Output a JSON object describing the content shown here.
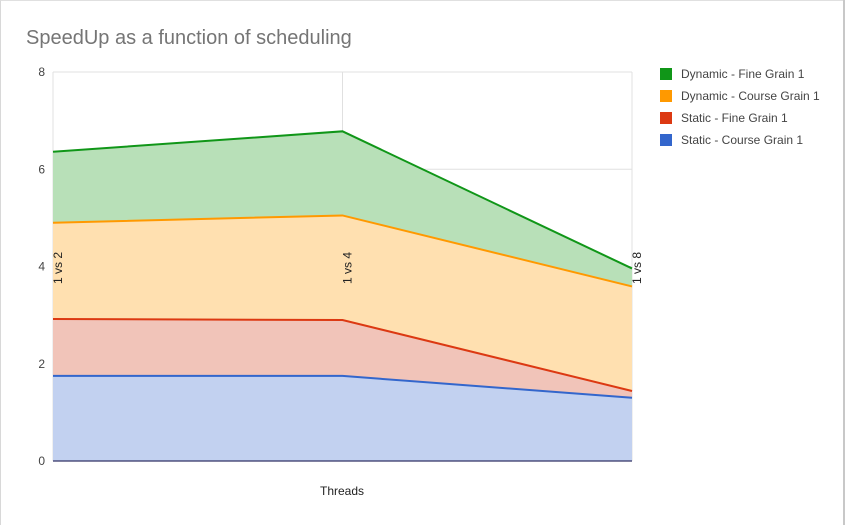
{
  "chart_data": {
    "type": "area",
    "stacked": true,
    "title": "SpeedUp as a function of scheduling",
    "xlabel": "Threads",
    "ylabel": "",
    "ylim": [
      0,
      8
    ],
    "yticks": [
      "0",
      "2",
      "4",
      "6",
      "8"
    ],
    "categories": [
      "1 vs 2",
      "1 vs 4",
      "1 vs 8"
    ],
    "legend_position": "right",
    "series": [
      {
        "name": "Static - Course Grain 1",
        "color": "#3366cc",
        "fill": "#c2d1f0",
        "values": [
          1.75,
          1.75,
          1.3
        ]
      },
      {
        "name": "Static - Fine Grain 1",
        "color": "#dc3912",
        "fill": "#f1c4b9",
        "values": [
          1.17,
          1.15,
          0.14
        ]
      },
      {
        "name": "Dynamic - Course Grain 1",
        "color": "#ff9900",
        "fill": "#ffe0b0",
        "values": [
          1.98,
          2.15,
          2.15
        ]
      },
      {
        "name": "Dynamic - Fine Grain 1",
        "color": "#109618",
        "fill": "#b8e0b8",
        "values": [
          1.46,
          1.73,
          0.37
        ]
      }
    ]
  }
}
